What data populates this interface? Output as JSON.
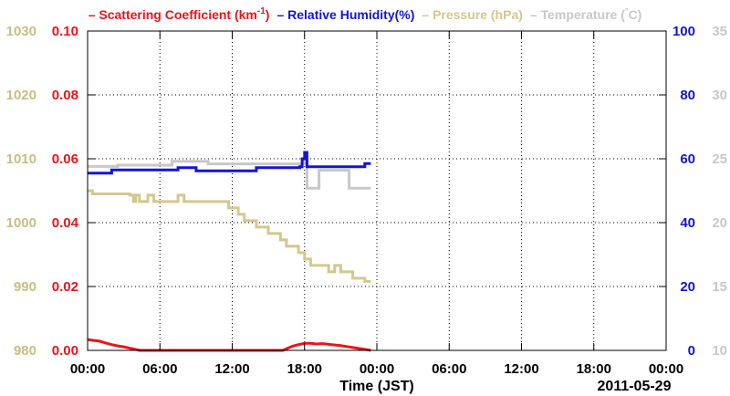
{
  "chart_data": {
    "type": "line",
    "legend": [
      {
        "dash": "–",
        "label": "Scattering Coefficient (km",
        "sup": "-1",
        "close": ")",
        "color": "#e8141c"
      },
      {
        "dash": "–",
        "label": "Relative Humidity(%)",
        "color": "#1414d2"
      },
      {
        "dash": "–",
        "label": "Pressure (hPa)",
        "color": "#d2c88c"
      },
      {
        "dash": "–",
        "label": "Temperature (",
        "deg": "°",
        "close": "C)",
        "color": "#c8c8c8"
      }
    ],
    "xlabel": "Time (JST)",
    "x_tick_labels": [
      "00:00",
      "06:00",
      "12:00",
      "18:00",
      "00:00",
      "06:00",
      "12:00",
      "18:00",
      "00:00"
    ],
    "date_label": "2011-05-29",
    "x_range_hours": [
      0,
      48
    ],
    "grid": true,
    "axes": {
      "pressure": {
        "ticks": [
          "980",
          "990",
          "1000",
          "1010",
          "1020",
          "1030"
        ],
        "range": [
          980,
          1030
        ],
        "color": "#c8be82"
      },
      "scattering": {
        "ticks": [
          "0.00",
          "0.02",
          "0.04",
          "0.06",
          "0.08",
          "0.10"
        ],
        "range": [
          0,
          0.1
        ],
        "color": "#e8141c"
      },
      "humidity": {
        "ticks": [
          "0",
          "20",
          "40",
          "60",
          "80",
          "100"
        ],
        "range": [
          0,
          100
        ],
        "color": "#1414d2"
      },
      "temperature": {
        "ticks": [
          "10",
          "15",
          "20",
          "25",
          "30",
          "35"
        ],
        "range": [
          10,
          35
        ],
        "color": "#c8c8c8"
      }
    },
    "series": [
      {
        "name": "Temperature",
        "axis": "temperature",
        "color": "#c8c8c8",
        "step": true,
        "x": [
          0,
          2,
          2.5,
          7,
          9,
          10,
          14,
          17.5,
          18,
          18.2,
          18.8,
          19.2,
          21.5,
          21.7,
          22,
          23.5
        ],
        "y": [
          24.4,
          24.4,
          24.5,
          24.8,
          24.8,
          24.6,
          24.6,
          24.6,
          24.9,
          22.7,
          22.7,
          24.1,
          24.1,
          22.7,
          22.7,
          22.7
        ]
      },
      {
        "name": "Relative Humidity",
        "axis": "humidity",
        "color": "#1414d2",
        "step": true,
        "x": [
          0,
          1.7,
          2,
          3.5,
          7.5,
          9,
          14,
          17.6,
          17.8,
          18,
          18.2,
          19,
          23,
          23.5
        ],
        "y": [
          55.5,
          55.5,
          56.5,
          56.5,
          57.2,
          56.2,
          57.2,
          57.5,
          60,
          62,
          57.5,
          57.5,
          58.5,
          58.5
        ]
      },
      {
        "name": "Pressure",
        "axis": "pressure",
        "color": "#d2c88c",
        "step": true,
        "x": [
          0,
          0.4,
          3.5,
          3.8,
          4,
          4.3,
          4.5,
          5,
          5.5,
          6,
          7.5,
          8,
          11.5,
          11.7,
          12,
          12.5,
          13,
          13.5,
          14,
          15,
          16,
          16.5,
          17,
          17.5,
          18,
          18.5,
          19,
          20,
          20.5,
          21,
          21.5,
          22,
          22.5,
          23,
          23.5
        ],
        "y": [
          1005,
          1004.5,
          1004.3,
          1003.3,
          1004.3,
          1003.3,
          1003.3,
          1004.3,
          1003.3,
          1003.3,
          1004.3,
          1003.3,
          1003.3,
          1002.3,
          1002.3,
          1001.3,
          1000.3,
          1000.3,
          999.3,
          998.3,
          997.3,
          996.3,
          996.3,
          995.3,
          994.3,
          993.3,
          993.3,
          992.3,
          993.3,
          992.3,
          992.3,
          991.3,
          991.3,
          990.8,
          990.8
        ]
      },
      {
        "name": "Scattering Coefficient",
        "axis": "scattering",
        "color": "#e8141c",
        "step": false,
        "x": [
          0,
          0.5,
          1,
          1.5,
          2,
          2.5,
          3,
          3.5,
          4,
          4.3,
          16.2,
          16.5,
          17,
          17.5,
          18,
          18.5,
          19,
          19.5,
          20,
          20.5,
          21,
          21.5,
          22,
          22.5,
          23,
          23.5
        ],
        "y": [
          0.0034,
          0.0031,
          0.0029,
          0.0023,
          0.0018,
          0.0014,
          0.0011,
          0.0007,
          0.0003,
          0,
          0,
          0.0005,
          0.0013,
          0.0018,
          0.0022,
          0.0022,
          0.002,
          0.0021,
          0.0019,
          0.0017,
          0.0015,
          0.0012,
          0.0009,
          0.0006,
          0.0003,
          0
        ]
      }
    ]
  }
}
